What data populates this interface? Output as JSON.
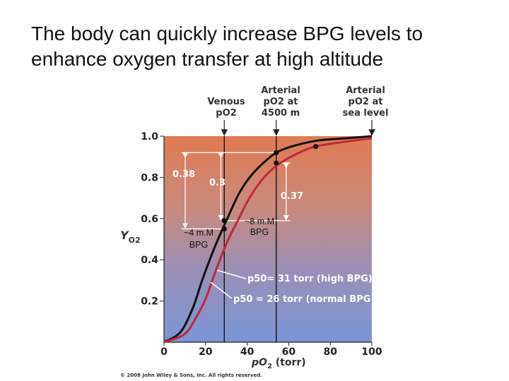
{
  "slide": {
    "title_line1": "The body can quickly increase BPG levels to",
    "title_line2": "enhance oxygen transfer at high altitude"
  },
  "chart_data": {
    "type": "line",
    "xlabel_main": "pO",
    "xlabel_sub": "2",
    "xlabel_unit": " (torr)",
    "ylabel_main": "Y",
    "ylabel_sub": "O2",
    "xlim": [
      0,
      100
    ],
    "ylim": [
      0,
      1.0
    ],
    "x_ticks": [
      "0",
      "20",
      "40",
      "60",
      "80",
      "100"
    ],
    "y_ticks": [
      "0.2",
      "0.4",
      "0.6",
      "0.8",
      "1.0"
    ],
    "series": [
      {
        "name": "p50 = 26 torr (normal BPG)",
        "color": "#111111",
        "x": [
          0,
          8,
          14,
          18,
          22,
          26,
          30,
          36,
          42,
          50,
          56,
          65,
          75,
          88,
          100
        ],
        "y": [
          0,
          0.05,
          0.17,
          0.29,
          0.4,
          0.5,
          0.59,
          0.72,
          0.81,
          0.89,
          0.93,
          0.96,
          0.98,
          0.99,
          1.0
        ]
      },
      {
        "name": "p50 = 31 torr (high BPG)",
        "color": "#c0283a",
        "x": [
          0,
          10,
          16,
          20,
          25,
          31,
          35,
          40,
          45,
          50,
          56,
          65,
          73,
          85,
          100
        ],
        "y": [
          0,
          0.04,
          0.13,
          0.21,
          0.35,
          0.5,
          0.58,
          0.68,
          0.76,
          0.82,
          0.87,
          0.92,
          0.95,
          0.97,
          0.99
        ]
      }
    ],
    "reference_lines": [
      {
        "x": 29,
        "label_lines": [
          "Venous",
          "pO2"
        ]
      },
      {
        "x": 54,
        "label_lines": [
          "Arterial",
          "pO2 at",
          "4500 m"
        ]
      },
      {
        "x": 100,
        "label_lines": [
          "Arterial",
          "pO2 at",
          "sea level"
        ]
      }
    ],
    "points": [
      {
        "x": 29,
        "y": 0.59
      },
      {
        "x": 29,
        "y": 0.55
      },
      {
        "x": 54,
        "y": 0.92
      },
      {
        "x": 54,
        "y": 0.87
      },
      {
        "x": 73,
        "y": 0.95
      }
    ],
    "annotations": {
      "delta_038": "0.38",
      "delta_03": "0.3",
      "delta_037": "0.37",
      "p50_high": "p50= 31 torr (high BPG)",
      "p50_normal": "p50 = 26 torr (normal BPG)",
      "bpg_low_line1": "~4 m.M",
      "bpg_low_line2": "BPG",
      "bpg_high_line1": "~8 m.M",
      "bpg_high_line2": "BPG"
    },
    "credit": "© 2008 John Wiley & Sons, Inc. All rights reserved.",
    "grid": false
  },
  "colors": {
    "background_top": "#e07a52",
    "background_bottom": "#7a96d6",
    "normal_curve": "#111111",
    "high_bpg_curve": "#c0283a"
  }
}
